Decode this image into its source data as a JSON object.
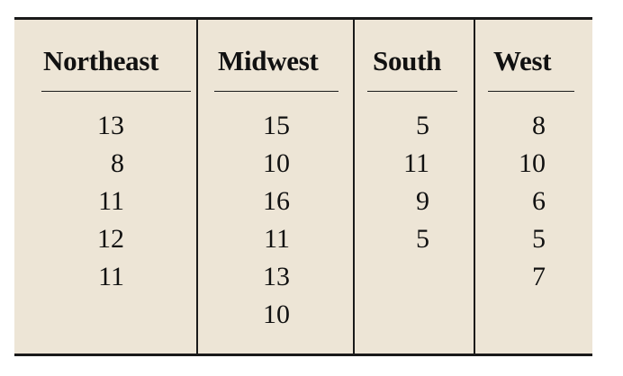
{
  "table": {
    "columns": [
      {
        "header": "Northeast",
        "values": [
          "13",
          "8",
          "11",
          "12",
          "11"
        ]
      },
      {
        "header": "Midwest",
        "values": [
          "15",
          "10",
          "16",
          "11",
          "13",
          "10"
        ]
      },
      {
        "header": "South",
        "values": [
          "5",
          "11",
          "9",
          "5"
        ]
      },
      {
        "header": "West",
        "values": [
          "8",
          "10",
          "6",
          "5",
          "7"
        ]
      }
    ]
  },
  "colors": {
    "background": "#ede5d6",
    "rule": "#1a1a1a"
  }
}
